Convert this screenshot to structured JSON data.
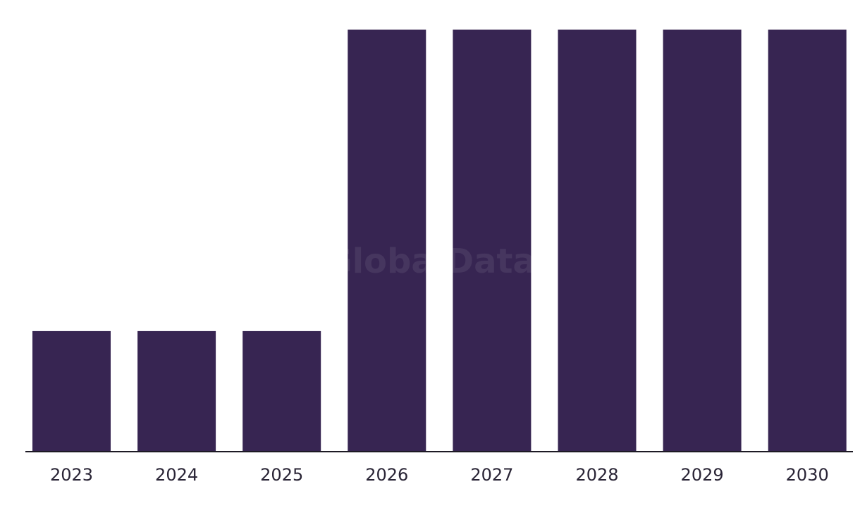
{
  "watermark": "GlobalData",
  "colors": {
    "bar": "#372552",
    "axis": "#1d1a24",
    "tick_text": "#2a2536",
    "background": "#ffffff"
  },
  "chart_data": {
    "type": "bar",
    "categories": [
      "2023",
      "2024",
      "2025",
      "2026",
      "2027",
      "2028",
      "2029",
      "2030"
    ],
    "values": [
      1,
      1,
      1,
      3.5,
      3.5,
      3.5,
      3.5,
      3.5
    ],
    "title": "",
    "xlabel": "",
    "ylabel": "",
    "ylim": [
      0,
      3.5
    ],
    "grid": false,
    "y_axis_shown": false
  }
}
